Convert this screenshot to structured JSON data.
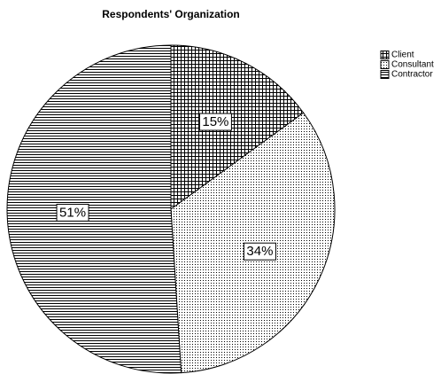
{
  "chart_data": {
    "type": "pie",
    "title": "Respondents' Organization",
    "categories": [
      "Client",
      "Consultant",
      "Contractor"
    ],
    "values": [
      15,
      34,
      51
    ],
    "value_labels": [
      "15%",
      "34%",
      "51%"
    ]
  }
}
